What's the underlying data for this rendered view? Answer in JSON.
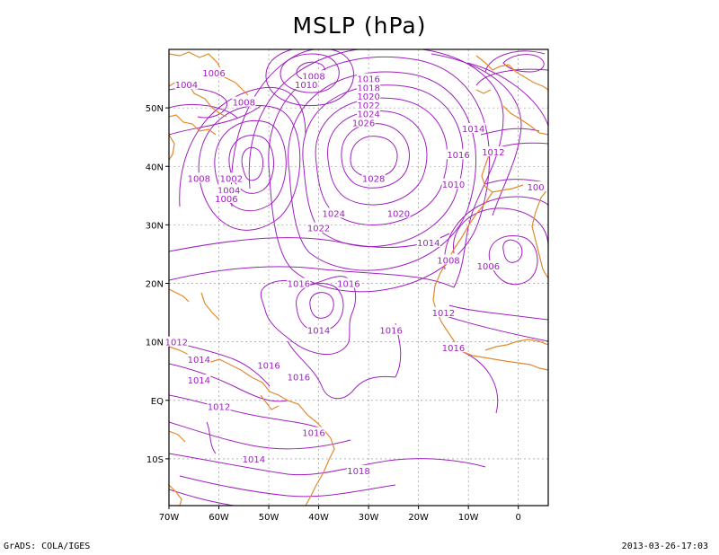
{
  "title": "MSLP (hPa)",
  "footer": {
    "left": "GrADS: COLA/IGES",
    "right": "2013-03-26-17:03"
  },
  "colors": {
    "contour": "#a020c0",
    "coast": "#e08a2e",
    "grid": "#888888",
    "frame": "#000000"
  },
  "chart_data": {
    "type": "contour-map",
    "variable": "MSLP (hPa)",
    "lon_range": [
      -70,
      6
    ],
    "lat_range": [
      -18,
      60
    ],
    "lon_ticks": [
      {
        "value": -70,
        "label": "70W"
      },
      {
        "value": -60,
        "label": "60W"
      },
      {
        "value": -50,
        "label": "50W"
      },
      {
        "value": -40,
        "label": "40W"
      },
      {
        "value": -30,
        "label": "30W"
      },
      {
        "value": -20,
        "label": "20W"
      },
      {
        "value": -10,
        "label": "10W"
      },
      {
        "value": 0,
        "label": "0"
      }
    ],
    "lat_ticks": [
      {
        "value": 50,
        "label": "50N"
      },
      {
        "value": 40,
        "label": "40N"
      },
      {
        "value": 30,
        "label": "30N"
      },
      {
        "value": 20,
        "label": "20N"
      },
      {
        "value": 10,
        "label": "10N"
      },
      {
        "value": 0,
        "label": "EQ"
      },
      {
        "value": -10,
        "label": "10S"
      }
    ],
    "grid": true,
    "contour_labels": [
      {
        "value": "1016",
        "lon": -30,
        "lat": 55
      },
      {
        "value": "1018",
        "lon": -30,
        "lat": 53.5
      },
      {
        "value": "1020",
        "lon": -30,
        "lat": 52
      },
      {
        "value": "1022",
        "lon": -30,
        "lat": 50.5
      },
      {
        "value": "1024",
        "lon": -30,
        "lat": 49
      },
      {
        "value": "1026",
        "lon": -31,
        "lat": 47.5
      },
      {
        "value": "1028",
        "lon": -29,
        "lat": 38
      },
      {
        "value": "1024",
        "lon": -37,
        "lat": 32
      },
      {
        "value": "1022",
        "lon": -40,
        "lat": 29.5
      },
      {
        "value": "1020",
        "lon": -24,
        "lat": 32
      },
      {
        "value": "1014",
        "lon": -9,
        "lat": 46.5
      },
      {
        "value": "1012",
        "lon": -5,
        "lat": 42.5
      },
      {
        "value": "1016",
        "lon": -12,
        "lat": 42
      },
      {
        "value": "1010",
        "lon": -13,
        "lat": 37
      },
      {
        "value": "100",
        "lon": 3.5,
        "lat": 36.5
      },
      {
        "value": "1014",
        "lon": -18,
        "lat": 27
      },
      {
        "value": "1008",
        "lon": -14,
        "lat": 24
      },
      {
        "value": "1006",
        "lon": -6,
        "lat": 23
      },
      {
        "value": "1012",
        "lon": -15,
        "lat": 15
      },
      {
        "value": "1016",
        "lon": -13,
        "lat": 9
      },
      {
        "value": "1016",
        "lon": -44,
        "lat": 20
      },
      {
        "value": "1016",
        "lon": -34,
        "lat": 20
      },
      {
        "value": "1014",
        "lon": -40,
        "lat": 12
      },
      {
        "value": "1016",
        "lon": -25.5,
        "lat": 12
      },
      {
        "value": "1016",
        "lon": -50,
        "lat": 6
      },
      {
        "value": "1016",
        "lon": -44,
        "lat": 4
      },
      {
        "value": "1014",
        "lon": -64,
        "lat": 7
      },
      {
        "value": "1014",
        "lon": -64,
        "lat": 3.5
      },
      {
        "value": "1012",
        "lon": -68.5,
        "lat": 10
      },
      {
        "value": "1012",
        "lon": -60,
        "lat": -1
      },
      {
        "value": "1016",
        "lon": -41,
        "lat": -5.5
      },
      {
        "value": "1014",
        "lon": -53,
        "lat": -10
      },
      {
        "value": "1018",
        "lon": -32,
        "lat": -12
      },
      {
        "value": "1006",
        "lon": -61,
        "lat": 56
      },
      {
        "value": "1004",
        "lon": -66.5,
        "lat": 54
      },
      {
        "value": "1008",
        "lon": -55,
        "lat": 51
      },
      {
        "value": "1008",
        "lon": -41,
        "lat": 55.5
      },
      {
        "value": "1010",
        "lon": -42.5,
        "lat": 54
      },
      {
        "value": "1002",
        "lon": -57.5,
        "lat": 38
      },
      {
        "value": "1008",
        "lon": -64,
        "lat": 38
      },
      {
        "value": "1004",
        "lon": -58,
        "lat": 36
      },
      {
        "value": "1006",
        "lon": -58.5,
        "lat": 34.5
      }
    ]
  }
}
